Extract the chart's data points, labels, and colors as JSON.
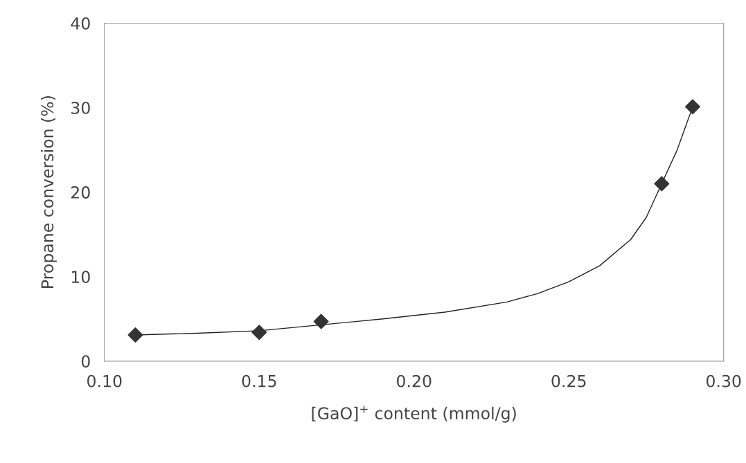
{
  "chart_data": {
    "type": "scatter",
    "xlabel": "[GaO]$^{+}$ content (mmol/g)",
    "ylabel": "Propane conversion (%)",
    "xlim": [
      0.1,
      0.3
    ],
    "xticks": [
      {
        "value": 0.1,
        "label": "0.10"
      },
      0.15,
      {
        "value": 0.2,
        "label": "0.20"
      },
      0.25,
      {
        "value": 0.3,
        "label": "0.30"
      }
    ],
    "ylim": [
      0,
      40
    ],
    "yticks": [
      0,
      10,
      20,
      30,
      40
    ],
    "grid": false,
    "legend": false,
    "series": [
      {
        "marker": "diamond",
        "color": "#333333",
        "x": [
          0.11,
          0.15,
          0.17,
          0.28,
          0.29
        ],
        "values": [
          3.1,
          3.4,
          4.7,
          21.0,
          30.1
        ]
      },
      {
        "type": "line",
        "marker": "none",
        "line_style": "solid",
        "color": "#222222",
        "x": [
          0.11,
          0.13,
          0.15,
          0.17,
          0.19,
          0.21,
          0.23,
          0.24,
          0.25,
          0.26,
          0.27,
          0.275,
          0.28,
          0.285,
          0.29
        ],
        "values": [
          3.1,
          3.3,
          3.6,
          4.3,
          5.0,
          5.8,
          7.0,
          8.0,
          9.4,
          11.3,
          14.4,
          17.0,
          21.0,
          25.0,
          30.1
        ]
      }
    ]
  }
}
